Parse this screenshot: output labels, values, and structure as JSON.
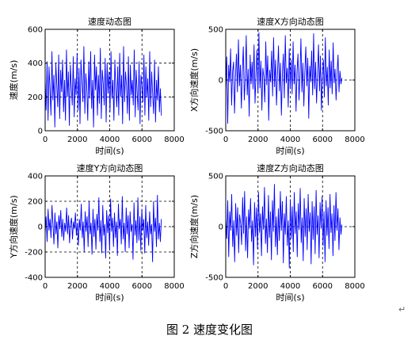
{
  "caption": "图 2  速度变化图",
  "return_mark": "↵",
  "colors": {
    "line": "#0000ff",
    "axes": "#000000",
    "grid": "#000000",
    "background": "#ffffff"
  },
  "chart_data": [
    {
      "type": "line",
      "title": "速度动态图",
      "xlabel": "时间(s)",
      "ylabel": "速度(m/s)",
      "xlim": [
        0,
        8000
      ],
      "ylim": [
        0,
        600
      ],
      "xticks": [
        0,
        2000,
        4000,
        6000,
        8000
      ],
      "yticks": [
        0,
        200,
        400,
        600
      ],
      "grid": true,
      "x_start": 0,
      "x_end": 7200,
      "series": [
        {
          "values": [
            300,
            120,
            410,
            60,
            380,
            250,
            90,
            470,
            180,
            330,
            20,
            400,
            280,
            140,
            450,
            70,
            360,
            230,
            420,
            110,
            300,
            60,
            480,
            200,
            350,
            30,
            390,
            260,
            150,
            440,
            80,
            310,
            210,
            460,
            120,
            370,
            40,
            420,
            290,
            170,
            500,
            100,
            340,
            250,
            60,
            410,
            190,
            470,
            130,
            300,
            20,
            450,
            240,
            380,
            90,
            330,
            160,
            490,
            70,
            360,
            280,
            150,
            430,
            50,
            400,
            220,
            350,
            110,
            470,
            190,
            300,
            60,
            420,
            250,
            140,
            380,
            90,
            460,
            200,
            330,
            40,
            500,
            170,
            350,
            270,
            100,
            440,
            60,
            390,
            210,
            300,
            150,
            480,
            80,
            360,
            230,
            120,
            410,
            40,
            330,
            260,
            170,
            450,
            90,
            380,
            200,
            310,
            60,
            470,
            140,
            350,
            220,
            100,
            420,
            50,
            300,
            180,
            380,
            110,
            250,
            90
          ]
        }
      ]
    },
    {
      "type": "line",
      "title": "速度X方向动态图",
      "xlabel": "时间(s)",
      "ylabel": "X方向速度(m/s)",
      "xlim": [
        0,
        8000
      ],
      "ylim": [
        -500,
        500
      ],
      "xticks": [
        0,
        2000,
        4000,
        6000,
        8000
      ],
      "yticks": [
        -500,
        0,
        500
      ],
      "grid": true,
      "x_start": 0,
      "x_end": 7200,
      "series": [
        {
          "values": [
            -100,
            230,
            -430,
            150,
            -20,
            310,
            -250,
            80,
            180,
            -330,
            40,
            260,
            -120,
            400,
            -60,
            150,
            -280,
            90,
            330,
            -200,
            20,
            440,
            -150,
            110,
            -360,
            250,
            -40,
            180,
            -90,
            350,
            -230,
            60,
            300,
            -130,
            470,
            -80,
            190,
            -300,
            120,
            30,
            -220,
            380,
            -50,
            240,
            -400,
            100,
            -20,
            290,
            -160,
            420,
            -70,
            200,
            -250,
            60,
            340,
            -110,
            170,
            -350,
            50,
            260,
            -180,
            440,
            -30,
            120,
            -270,
            310,
            -90,
            200,
            -140,
            380,
            -40,
            150,
            -310,
            90,
            260,
            -200,
            30,
            410,
            -120,
            170,
            -260,
            80,
            330,
            -60,
            220,
            -380,
            140,
            -20,
            290,
            -150,
            460,
            -90,
            180,
            -230,
            60,
            350,
            -110,
            240,
            -300,
            40,
            200,
            -170,
            420,
            -60,
            130,
            -250,
            300,
            -80,
            190,
            -140,
            370,
            -30,
            110,
            -200,
            60,
            250,
            -120,
            90,
            -40,
            20
          ]
        }
      ]
    },
    {
      "type": "line",
      "title": "速度Y方向动态图",
      "xlabel": "时间(s)",
      "ylabel": "Y方向速度(m/s)",
      "xlim": [
        0,
        8000
      ],
      "ylim": [
        -400,
        400
      ],
      "xticks": [
        0,
        2000,
        4000,
        6000,
        8000
      ],
      "yticks": [
        -400,
        -200,
        0,
        200,
        400
      ],
      "grid": true,
      "x_start": 0,
      "x_end": 7200,
      "series": [
        {
          "values": [
            -50,
            80,
            -120,
            140,
            -30,
            60,
            -90,
            170,
            20,
            -140,
            110,
            -60,
            40,
            -170,
            90,
            -20,
            130,
            -80,
            60,
            -110,
            30,
            -40,
            150,
            -60,
            90,
            -130,
            20,
            70,
            -100,
            40,
            -20,
            110,
            -70,
            30,
            -150,
            60,
            -30,
            180,
            -90,
            40,
            -200,
            120,
            -40,
            80,
            -160,
            200,
            -60,
            30,
            -220,
            140,
            -80,
            60,
            -180,
            100,
            -30,
            230,
            -120,
            50,
            -210,
            170,
            -70,
            20,
            -250,
            130,
            -50,
            90,
            -190,
            220,
            -40,
            70,
            -160,
            110,
            -90,
            40,
            -230,
            180,
            -20,
            60,
            -140,
            240,
            -100,
            30,
            -200,
            150,
            -60,
            90,
            -170,
            120,
            -40,
            20,
            -260,
            190,
            -70,
            50,
            -130,
            230,
            -110,
            80,
            -190,
            140,
            -30,
            60,
            -210,
            170,
            -90,
            40,
            -150,
            120,
            -60,
            20,
            -280,
            200,
            -40,
            70,
            -160,
            250,
            -100,
            30,
            -120,
            60
          ]
        }
      ]
    },
    {
      "type": "line",
      "title": "速度Z方向动态图",
      "xlabel": "时间(s)",
      "ylabel": "Z方向速度(m/s)",
      "xlim": [
        0,
        8000
      ],
      "ylim": [
        -500,
        500
      ],
      "xticks": [
        0,
        2000,
        4000,
        6000,
        8000
      ],
      "yticks": [
        -500,
        0,
        500
      ],
      "grid": true,
      "x_start": 0,
      "x_end": 7200,
      "series": [
        {
          "values": [
            80,
            -120,
            260,
            -300,
            150,
            -40,
            320,
            -200,
            60,
            -350,
            230,
            -90,
            190,
            -260,
            120,
            30,
            -180,
            290,
            -70,
            350,
            -240,
            100,
            -310,
            170,
            -20,
            280,
            -150,
            60,
            -380,
            240,
            -100,
            190,
            -220,
            340,
            -60,
            130,
            -290,
            200,
            -30,
            390,
            -170,
            80,
            -260,
            310,
            -110,
            150,
            -330,
            260,
            -50,
            420,
            -200,
            100,
            -280,
            180,
            -140,
            350,
            -40,
            250,
            -360,
            130,
            -80,
            300,
            -190,
            60,
            -410,
            270,
            -120,
            200,
            -250,
            340,
            -70,
            150,
            -300,
            230,
            -30,
            380,
            -160,
            90,
            -340,
            280,
            -100,
            180,
            -230,
            320,
            -50,
            140,
            -370,
            250,
            -130,
            200,
            -270,
            360,
            -80,
            110,
            -310,
            240,
            -20,
            300,
            -190,
            150,
            -350,
            260,
            -90,
            190,
            -220,
            320,
            -60,
            130,
            -290,
            210,
            -140,
            340,
            -40,
            180,
            -230,
            90,
            -80,
            20
          ]
        }
      ]
    }
  ]
}
